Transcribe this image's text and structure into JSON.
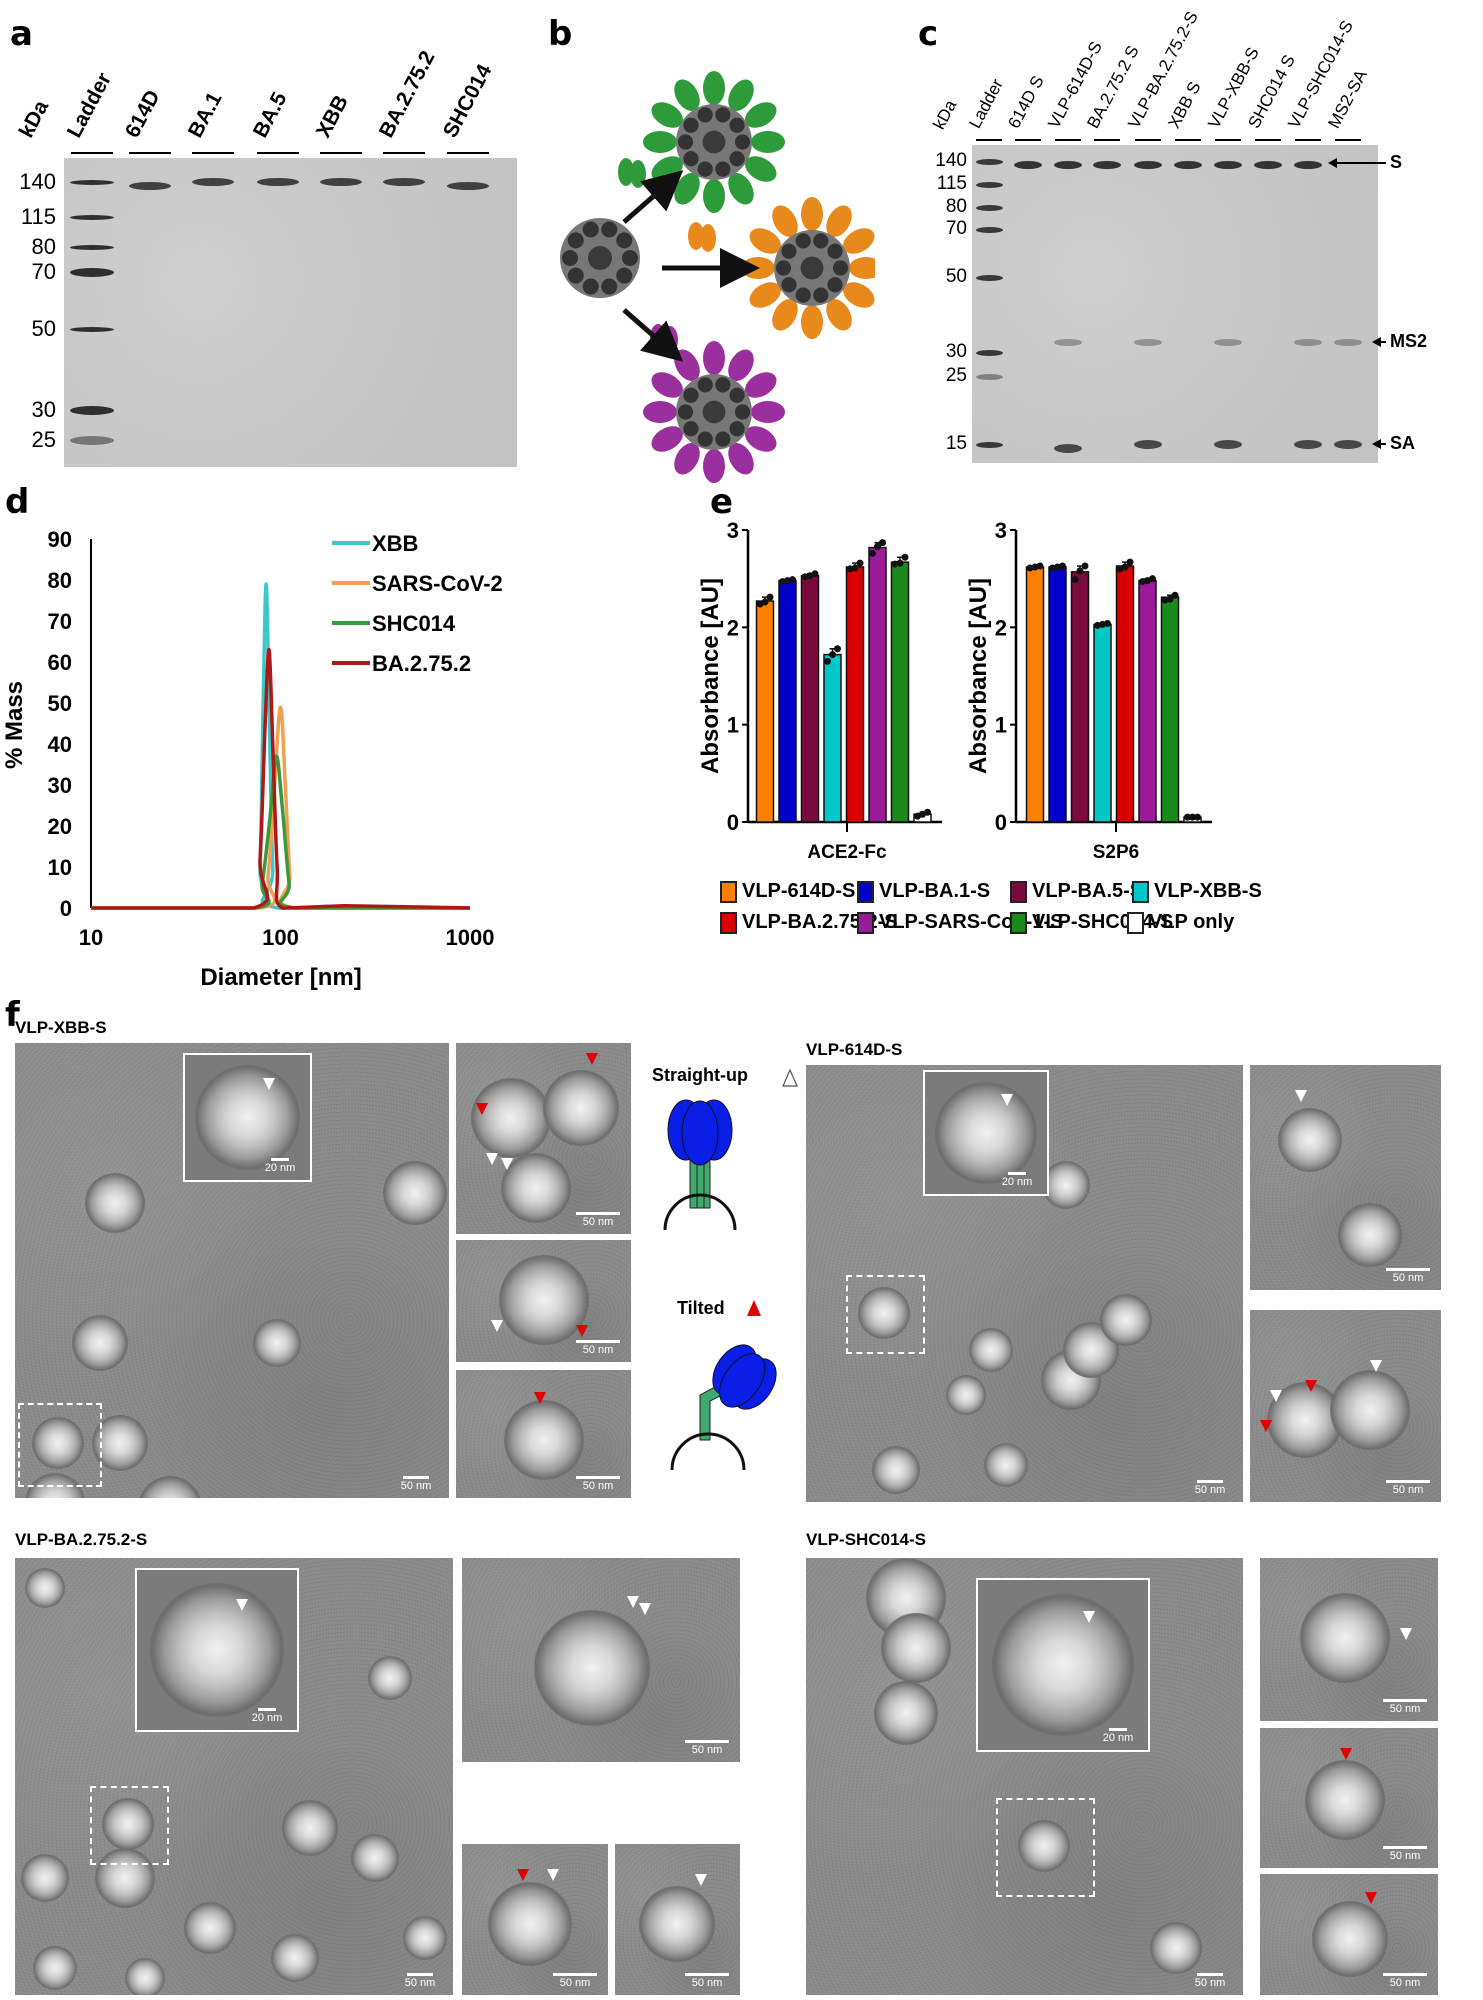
{
  "panels": {
    "a": "a",
    "b": "b",
    "c": "c",
    "d": "d",
    "e": "e",
    "f": "f"
  },
  "gel_a": {
    "unit": "kDa",
    "lanes": [
      "Ladder",
      "614D",
      "BA.1",
      "BA.5",
      "XBB",
      "BA.2.75.2",
      "SHC014"
    ],
    "markers": [
      "140",
      "115",
      "80",
      "70",
      "50",
      "30",
      "25"
    ]
  },
  "gel_c": {
    "unit": "kDa",
    "lanes": [
      "Ladder",
      "614D S",
      "VLP-614D-S",
      "BA.2.75.2 S",
      "VLP-BA.2.75.2-S",
      "XBB S",
      "VLP-XBB-S",
      "SHC014 S",
      "VLP-SHC014-S",
      "MS2-SA"
    ],
    "markers": [
      "140",
      "115",
      "80",
      "70",
      "50",
      "30",
      "25",
      "15"
    ],
    "band_labels": {
      "s": "S",
      "ms2": "MS2",
      "sa": "SA"
    }
  },
  "colors": {
    "spike_green": "#2e9b3a",
    "spike_orange": "#e8891c",
    "spike_purple": "#9b2f9e",
    "core": "#555555",
    "schematic_head": "#0a1ee8",
    "schematic_stalk": "#3daa6e",
    "tilted_marker": "#e00000"
  },
  "chart_data": [
    {
      "type": "line",
      "xlabel": "Diameter [nm]",
      "ylabel": "% Mass",
      "xscale": "log",
      "xlim": [
        10,
        1000
      ],
      "ylim": [
        0,
        90
      ],
      "xticks": [
        "10",
        "100",
        "1000"
      ],
      "yticks": [
        "0",
        "10",
        "20",
        "30",
        "40",
        "50",
        "60",
        "70",
        "80",
        "90"
      ],
      "legend_position": "top-right",
      "grid": false,
      "series": [
        {
          "name": "XBB",
          "color": "#3cc8c8",
          "points": [
            [
              10,
              0
            ],
            [
              74,
              0
            ],
            [
              78,
              10
            ],
            [
              81,
              50
            ],
            [
              84,
              79
            ],
            [
              87,
              50
            ],
            [
              91,
              10
            ],
            [
              97,
              0
            ],
            [
              1000,
              0
            ]
          ]
        },
        {
          "name": "SARS-CoV-2",
          "color": "#f0a050",
          "points": [
            [
              10,
              0
            ],
            [
              78,
              0
            ],
            [
              86,
              8
            ],
            [
              93,
              30
            ],
            [
              100,
              49
            ],
            [
              106,
              30
            ],
            [
              112,
              8
            ],
            [
              119,
              0
            ],
            [
              1000,
              0
            ]
          ]
        },
        {
          "name": "SHC014",
          "color": "#3a9a3a",
          "points": [
            [
              10,
              0
            ],
            [
              73,
              0
            ],
            [
              80,
              6
            ],
            [
              88,
              22
            ],
            [
              95,
              37
            ],
            [
              102,
              25
            ],
            [
              111,
              6
            ],
            [
              119,
              0
            ],
            [
              1000,
              0
            ]
          ]
        },
        {
          "name": "BA.2.75.2",
          "color": "#b01818",
          "points": [
            [
              10,
              0
            ],
            [
              72,
              0
            ],
            [
              78,
              12
            ],
            [
              83,
              45
            ],
            [
              87,
              63
            ],
            [
              91,
              40
            ],
            [
              96,
              10
            ],
            [
              102,
              0
            ],
            [
              200,
              0.5
            ],
            [
              260,
              0.5
            ],
            [
              1000,
              0
            ]
          ]
        }
      ]
    },
    {
      "type": "bar",
      "ylabel": "Absorbance [AU]",
      "ylim": [
        0,
        3
      ],
      "yticks": [
        "0",
        "1",
        "2",
        "3"
      ],
      "groups": [
        "ACE2-Fc",
        "S2P6"
      ],
      "series_names": [
        "VLP-614D-S",
        "VLP-BA.1-S",
        "VLP-BA.5-S",
        "VLP-XBB-S",
        "VLP-BA.2.75.2-S",
        "VLP-SARS-CoV-1-S",
        "VLP-SHC014-S",
        "VLP only"
      ],
      "series_colors": [
        "#ff8000",
        "#0000c8",
        "#7a0a3c",
        "#00c8c8",
        "#d80000",
        "#9a1a9a",
        "#1a8a1a",
        "#ffffff"
      ],
      "values": [
        [
          2.27,
          2.48,
          2.53,
          1.72,
          2.62,
          2.82,
          2.67,
          0.08
        ],
        [
          2.62,
          2.62,
          2.57,
          2.03,
          2.63,
          2.48,
          2.31,
          0.05
        ]
      ],
      "replicates": [
        [
          [
            2.24,
            2.26,
            2.31
          ],
          [
            2.47,
            2.48,
            2.49
          ],
          [
            2.52,
            2.53,
            2.55
          ],
          [
            1.65,
            1.72,
            1.78
          ],
          [
            2.6,
            2.61,
            2.66
          ],
          [
            2.76,
            2.83,
            2.87
          ],
          [
            2.65,
            2.66,
            2.72
          ],
          [
            0.06,
            0.08,
            0.1
          ]
        ],
        [
          [
            2.61,
            2.62,
            2.63
          ],
          [
            2.61,
            2.62,
            2.63
          ],
          [
            2.49,
            2.58,
            2.63
          ],
          [
            2.02,
            2.03,
            2.04
          ],
          [
            2.6,
            2.62,
            2.67
          ],
          [
            2.47,
            2.48,
            2.5
          ],
          [
            2.28,
            2.29,
            2.33
          ],
          [
            0.05,
            0.05,
            0.05
          ]
        ]
      ],
      "legend_position": "bottom"
    }
  ],
  "f": {
    "titles": [
      "VLP-XBB-S",
      "VLP-614D-S",
      "VLP-BA.2.75.2-S",
      "VLP-SHC014-S"
    ],
    "straight_up": "Straight-up",
    "tilted": "Tilted",
    "scale_50": "50 nm",
    "scale_20": "20 nm"
  }
}
